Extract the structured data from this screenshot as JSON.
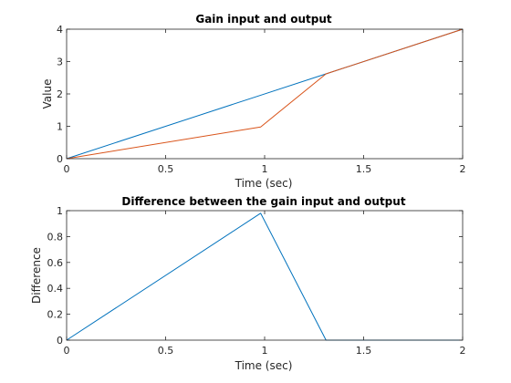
{
  "chart_data": [
    {
      "type": "line",
      "title": "Gain input and output",
      "xlabel": "Time (sec)",
      "ylabel": "Value",
      "xlim": [
        0,
        2
      ],
      "ylim": [
        0,
        4
      ],
      "xticks": [
        0,
        0.5,
        1,
        1.5,
        2
      ],
      "xtick_labels": [
        "0",
        "0.5",
        "1",
        "1.5",
        "2"
      ],
      "yticks": [
        0,
        1,
        2,
        3,
        4
      ],
      "ytick_labels": [
        "0",
        "1",
        "2",
        "3",
        "4"
      ],
      "grid": false,
      "series": [
        {
          "color": "#0072bd",
          "x": [
            0,
            0.98,
            1.31,
            2
          ],
          "y": [
            0,
            1.96,
            2.62,
            4
          ]
        },
        {
          "color": "#d95319",
          "x": [
            0,
            0.98,
            1.31,
            2
          ],
          "y": [
            0,
            0.98,
            2.62,
            4
          ]
        }
      ]
    },
    {
      "type": "line",
      "title": "Difference between the gain input and output",
      "xlabel": "Time (sec)",
      "ylabel": "Difference",
      "xlim": [
        0,
        2
      ],
      "ylim": [
        0,
        1
      ],
      "xticks": [
        0,
        0.5,
        1,
        1.5,
        2
      ],
      "xtick_labels": [
        "0",
        "0.5",
        "1",
        "1.5",
        "2"
      ],
      "yticks": [
        0,
        0.2,
        0.4,
        0.6,
        0.8,
        1
      ],
      "ytick_labels": [
        "0",
        "0.2",
        "0.4",
        "0.6",
        "0.8",
        "1"
      ],
      "grid": false,
      "series": [
        {
          "color": "#0072bd",
          "x": [
            0,
            0.98,
            1.31,
            2
          ],
          "y": [
            0,
            0.98,
            0,
            0
          ]
        }
      ]
    }
  ]
}
